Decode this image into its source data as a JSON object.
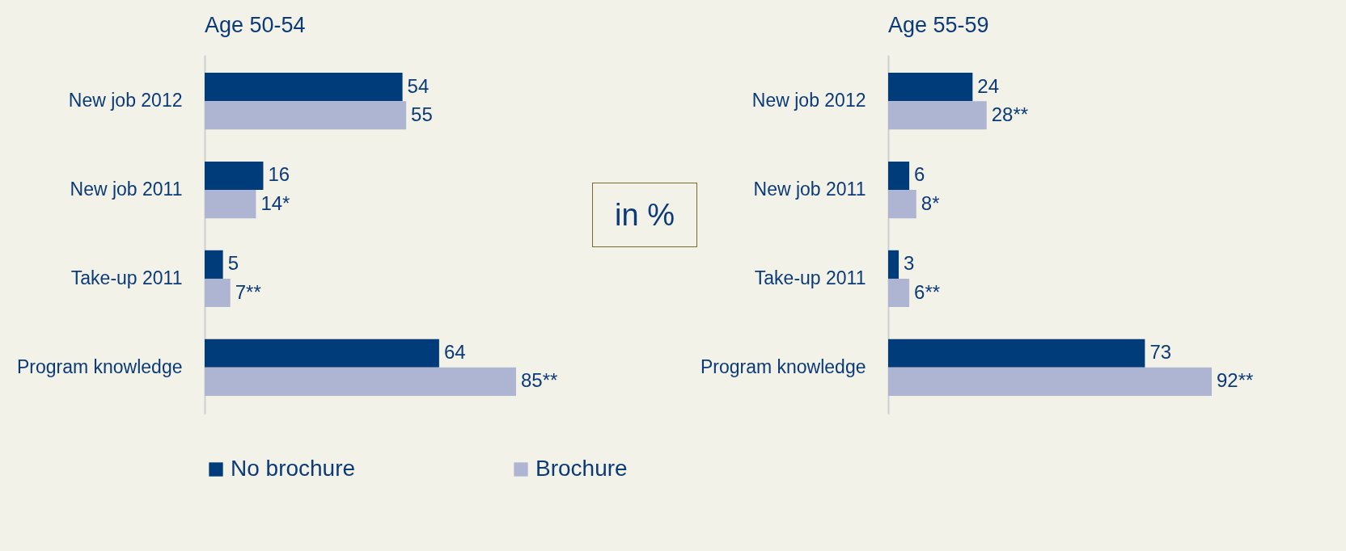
{
  "chart_data": [
    {
      "type": "bar",
      "orientation": "horizontal",
      "title": "Age 50-54",
      "categories": [
        "New job 2012",
        "New job 2011",
        "Take-up 2011",
        "Program knowledge"
      ],
      "legend": "bottom",
      "tick_labels": "y",
      "annotations": [
        "in %"
      ],
      "series": [
        {
          "name": "No brochure",
          "color": "#003b7a",
          "values": [
            54,
            16,
            5,
            64
          ],
          "value_labels": [
            "54",
            "16",
            "5",
            "64"
          ]
        },
        {
          "name": "Brochure",
          "color": "#aeb5d3",
          "values": [
            55,
            14,
            7,
            85
          ],
          "value_labels": [
            "55",
            "14*",
            "7**",
            "85**"
          ]
        }
      ]
    },
    {
      "type": "bar",
      "orientation": "horizontal",
      "title": "Age 55-59",
      "categories": [
        "New job 2012",
        "New job 2011",
        "Take-up 2011",
        "Program knowledge"
      ],
      "legend": "bottom",
      "tick_labels": "y",
      "series": [
        {
          "name": "No brochure",
          "color": "#003b7a",
          "values": [
            24,
            6,
            3,
            73
          ],
          "value_labels": [
            "24",
            "6",
            "3",
            "73"
          ]
        },
        {
          "name": "Brochure",
          "color": "#aeb5d3",
          "values": [
            28,
            8,
            6,
            92
          ],
          "value_labels": [
            "28**",
            "8*",
            "6**",
            "92**"
          ]
        }
      ]
    }
  ]
}
